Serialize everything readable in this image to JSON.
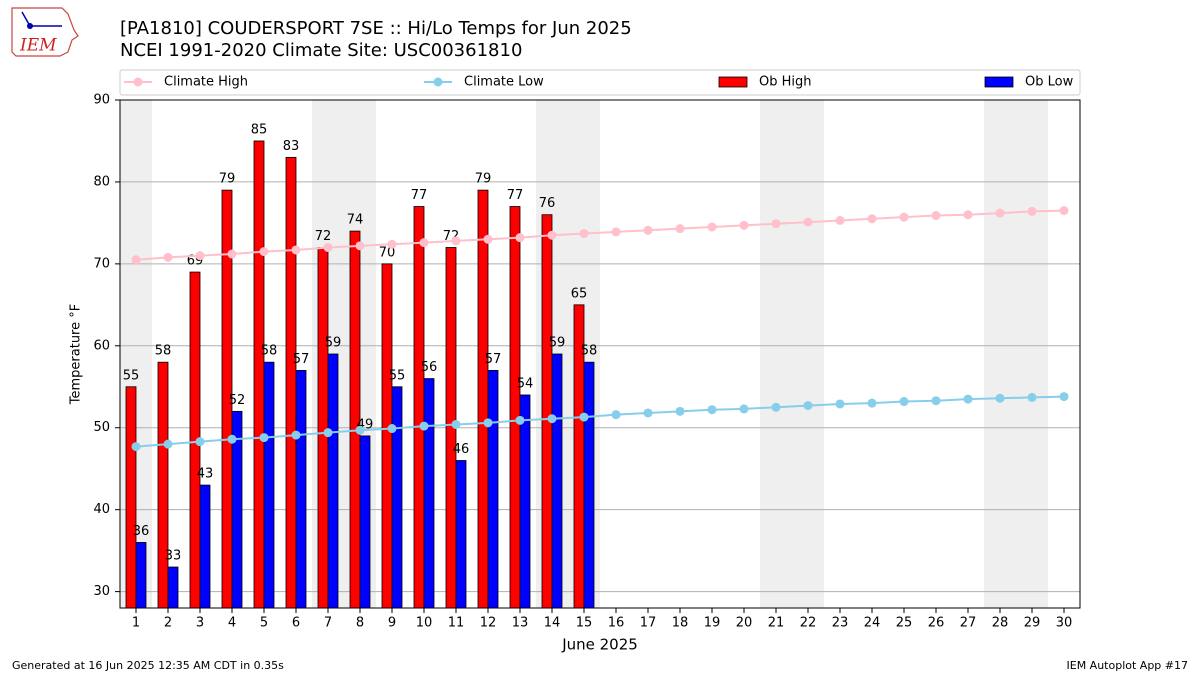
{
  "chart_data": {
    "type": "bar",
    "logo_text": "IEM",
    "title": "[PA1810] COUDERSPORT 7SE :: Hi/Lo Temps for Jun 2025",
    "subtitle": "NCEI 1991-2020 Climate Site: USC00361810",
    "x_label": "June 2025",
    "y_label": "Temperature °F",
    "footer_left": "Generated at 16 Jun 2025 12:35 AM CDT in 0.35s",
    "footer_right": "IEM Autoplot App #17",
    "categories": [
      1,
      2,
      3,
      4,
      5,
      6,
      7,
      8,
      9,
      10,
      11,
      12,
      13,
      14,
      15,
      16,
      17,
      18,
      19,
      20,
      21,
      22,
      23,
      24,
      25,
      26,
      27,
      28,
      29,
      30
    ],
    "shaded_days": [
      1,
      7,
      8,
      14,
      15,
      21,
      22,
      28,
      29
    ],
    "series": [
      {
        "name": "Climate High",
        "kind": "line",
        "color": "#ffc0cb",
        "values": [
          70.5,
          70.8,
          71.0,
          71.2,
          71.5,
          71.7,
          72.0,
          72.2,
          72.4,
          72.6,
          72.8,
          73.0,
          73.2,
          73.5,
          73.7,
          73.9,
          74.1,
          74.3,
          74.5,
          74.7,
          74.9,
          75.1,
          75.3,
          75.5,
          75.7,
          75.9,
          76.0,
          76.2,
          76.4,
          76.5
        ]
      },
      {
        "name": "Climate Low",
        "kind": "line",
        "color": "#87ceeb",
        "values": [
          47.7,
          48.0,
          48.3,
          48.6,
          48.8,
          49.1,
          49.4,
          49.7,
          49.9,
          50.2,
          50.4,
          50.6,
          50.9,
          51.1,
          51.3,
          51.6,
          51.8,
          52.0,
          52.2,
          52.3,
          52.5,
          52.7,
          52.9,
          53.0,
          53.2,
          53.3,
          53.5,
          53.6,
          53.7,
          53.8
        ]
      },
      {
        "name": "Ob High",
        "kind": "bar",
        "color": "#ff0000",
        "values": [
          55,
          58,
          69,
          79,
          85,
          83,
          72,
          74,
          70,
          77,
          72,
          79,
          77,
          76,
          65,
          null,
          null,
          null,
          null,
          null,
          null,
          null,
          null,
          null,
          null,
          null,
          null,
          null,
          null,
          null
        ]
      },
      {
        "name": "Ob Low",
        "kind": "bar",
        "color": "#0000ff",
        "values": [
          36,
          33,
          43,
          52,
          58,
          57,
          59,
          49,
          55,
          56,
          46,
          57,
          54,
          59,
          58,
          null,
          null,
          null,
          null,
          null,
          null,
          null,
          null,
          null,
          null,
          null,
          null,
          null,
          null,
          null
        ]
      }
    ],
    "ylim": [
      28,
      90
    ],
    "yticks": [
      30,
      40,
      50,
      60,
      70,
      80,
      90
    ],
    "grid": true
  }
}
